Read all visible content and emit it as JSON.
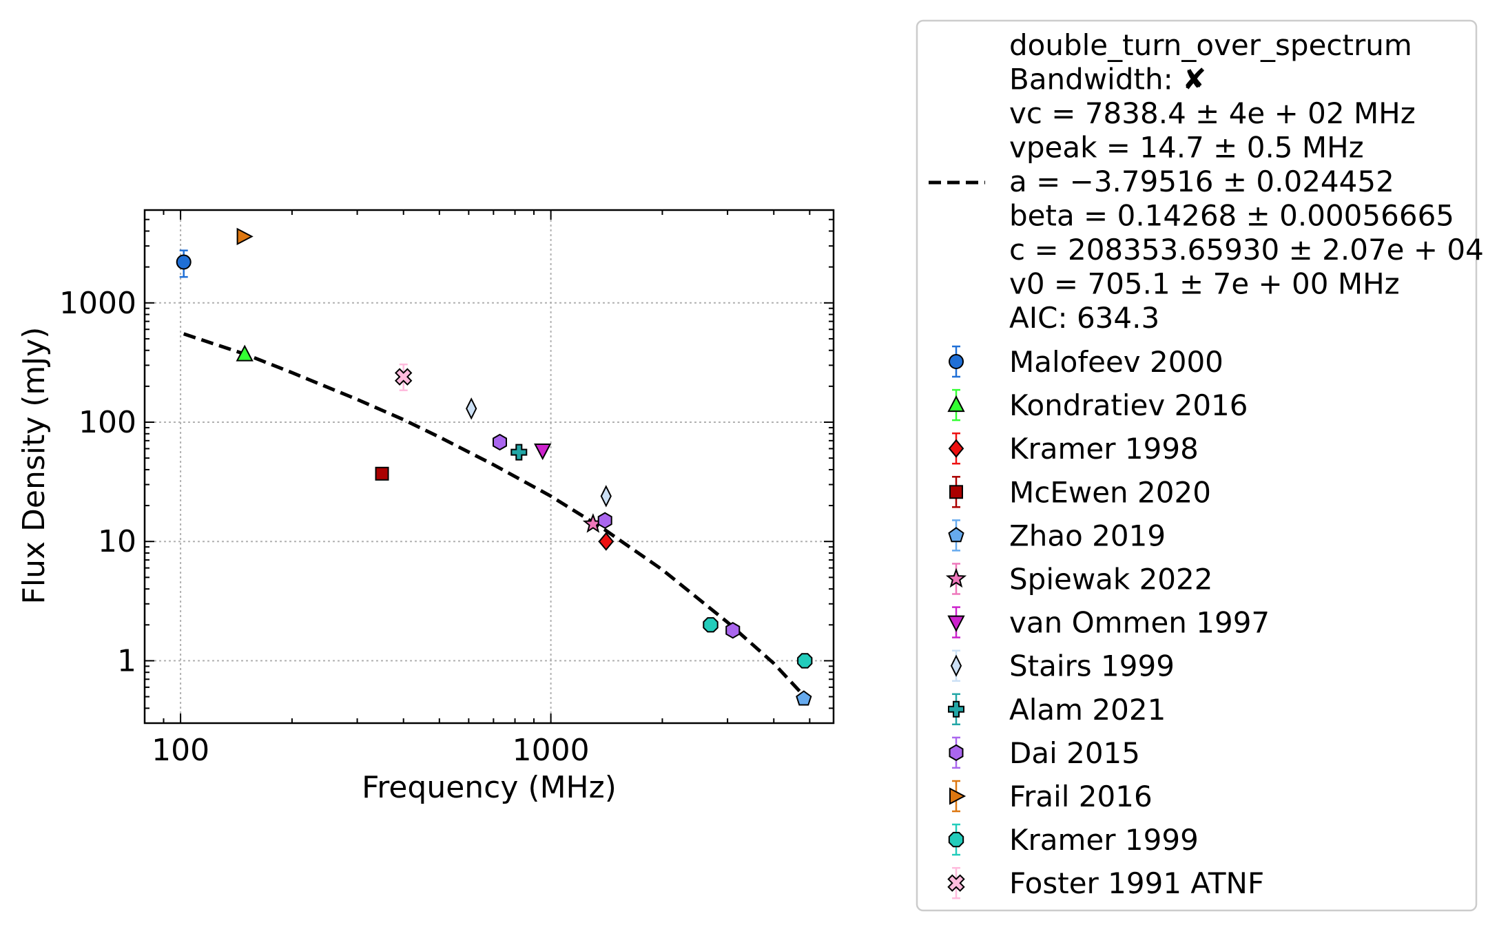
{
  "chart_data": {
    "type": "scatter",
    "xlabel": "Frequency (MHz)",
    "ylabel": "Flux Density (mJy)",
    "x_scale": "log",
    "y_scale": "log",
    "xlim": [
      80,
      5800
    ],
    "ylim": [
      0.3,
      6000
    ],
    "xticks": [
      {
        "value": 100,
        "label": "100"
      },
      {
        "value": 1000,
        "label": "1000"
      }
    ],
    "yticks": [
      {
        "value": 1,
        "label": "1"
      },
      {
        "value": 10,
        "label": "10"
      },
      {
        "value": 100,
        "label": "100"
      },
      {
        "value": 1000,
        "label": "1000"
      }
    ],
    "grid": true,
    "legend_position": "outside right",
    "fit": {
      "name": "double_turn_over_spectrum",
      "style": "dashed",
      "color": "#000000",
      "legend_lines": [
        "double_turn_over_spectrum",
        "Bandwidth: ✘",
        "vc = 7838.4 ± 4e + 02 MHz",
        "vpeak = 14.7 ± 0.5 MHz",
        "a = −3.79516 ± 0.024452",
        "beta = 0.14268 ± 0.00056665",
        "c = 208353.65930 ± 2.07e + 04",
        "v0 = 705.1 ± 7e + 00 MHz",
        "AIC: 634.3"
      ],
      "x": [
        102,
        150,
        200,
        300,
        400,
        500,
        700,
        1000,
        1400,
        2000,
        3000,
        4000,
        4850
      ],
      "y": [
        550,
        370,
        260,
        155,
        105,
        75,
        44,
        24,
        12.5,
        5.8,
        2.1,
        0.95,
        0.5
      ]
    },
    "series": [
      {
        "name": "Malofeev 2000",
        "marker": "circle",
        "color": "#1f6fd6",
        "points": [
          {
            "x": 102,
            "y": 2200,
            "y_lo": 1650,
            "y_hi": 2750
          }
        ]
      },
      {
        "name": "Kondratiev 2016",
        "marker": "triangle-up",
        "color": "#33ff33",
        "points": [
          {
            "x": 149,
            "y": 370
          }
        ]
      },
      {
        "name": "Kramer 1998",
        "marker": "diamond",
        "color": "#ee1111",
        "points": [
          {
            "x": 1410,
            "y": 10
          }
        ]
      },
      {
        "name": "McEwen 2020",
        "marker": "square",
        "color": "#aa0000",
        "points": [
          {
            "x": 350,
            "y": 37
          }
        ]
      },
      {
        "name": "Zhao 2019",
        "marker": "pentagon",
        "color": "#66aaee",
        "points": [
          {
            "x": 4820,
            "y": 0.48
          }
        ]
      },
      {
        "name": "Spiewak 2022",
        "marker": "star",
        "color": "#ee77bb",
        "points": [
          {
            "x": 1300,
            "y": 14
          }
        ]
      },
      {
        "name": "van Ommen 1997",
        "marker": "triangle-down",
        "color": "#cc22cc",
        "points": [
          {
            "x": 950,
            "y": 58
          }
        ]
      },
      {
        "name": "Stairs 1999",
        "marker": "thin-diamond",
        "color": "#cce0f5",
        "points": [
          {
            "x": 610,
            "y": 130
          },
          {
            "x": 1410,
            "y": 24
          }
        ]
      },
      {
        "name": "Alam 2021",
        "marker": "plus",
        "color": "#22a6a6",
        "points": [
          {
            "x": 820,
            "y": 56
          }
        ]
      },
      {
        "name": "Dai 2015",
        "marker": "hexagon",
        "color": "#aa66ee",
        "points": [
          {
            "x": 728,
            "y": 68
          },
          {
            "x": 1400,
            "y": 15
          },
          {
            "x": 3100,
            "y": 1.8
          }
        ]
      },
      {
        "name": "Frail 2016",
        "marker": "triangle-right",
        "color": "#dd7711",
        "points": [
          {
            "x": 148,
            "y": 3600
          }
        ]
      },
      {
        "name": "Kramer 1999",
        "marker": "octagon",
        "color": "#22ccbb",
        "points": [
          {
            "x": 2700,
            "y": 2
          },
          {
            "x": 4850,
            "y": 1
          }
        ]
      },
      {
        "name": "Foster 1991 ATNF",
        "marker": "x-filled",
        "color": "#ffbbdd",
        "points": [
          {
            "x": 400,
            "y": 240,
            "y_lo": 185,
            "y_hi": 305
          }
        ]
      }
    ]
  }
}
